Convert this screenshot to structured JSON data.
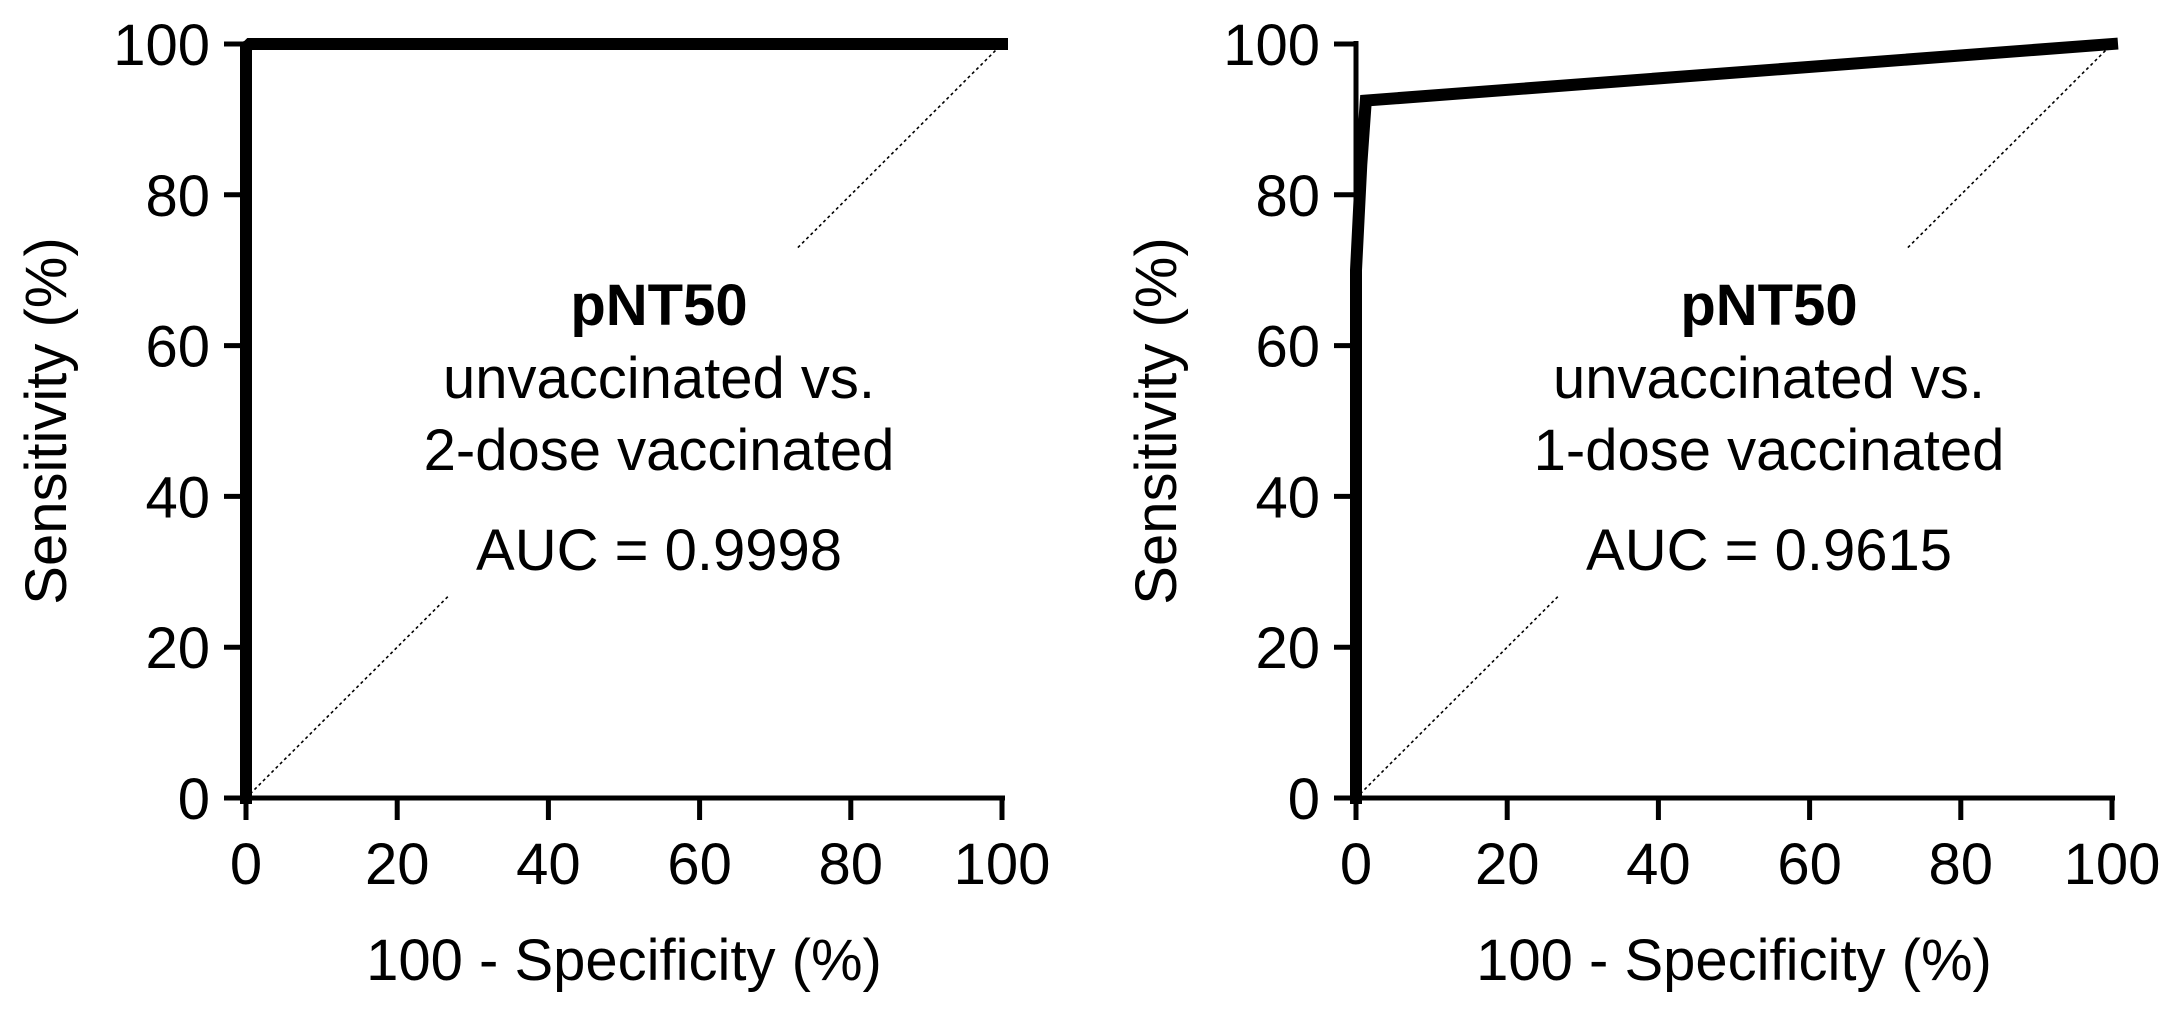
{
  "chart_data": [
    {
      "type": "line",
      "xlabel": "100 - Specificity (%)",
      "ylabel": "Sensitivity (%)",
      "xlim": [
        0,
        100
      ],
      "ylim": [
        0,
        100
      ],
      "xticks": [
        0,
        20,
        40,
        60,
        80,
        100
      ],
      "yticks": [
        0,
        20,
        40,
        60,
        80,
        100
      ],
      "grid": false,
      "annotation": {
        "title": "pNT50",
        "line1": "unvaccinated vs.",
        "line2": "2-dose vaccinated",
        "auc": "AUC = 0.9998"
      },
      "series": [
        {
          "x": [
            0,
            0,
            0.5,
            100
          ],
          "y": [
            0,
            99.5,
            100,
            100
          ]
        }
      ],
      "reference_line": {
        "x": [
          0,
          100
        ],
        "y": [
          0,
          100
        ],
        "style": "dotted"
      }
    },
    {
      "type": "line",
      "xlabel": "100 - Specificity (%)",
      "ylabel": "Sensitivity (%)",
      "xlim": [
        0,
        100
      ],
      "ylim": [
        0,
        100
      ],
      "xticks": [
        0,
        20,
        40,
        60,
        80,
        100
      ],
      "yticks": [
        0,
        20,
        40,
        60,
        80,
        100
      ],
      "grid": false,
      "annotation": {
        "title": "pNT50",
        "line1": "unvaccinated vs.",
        "line2": "1-dose vaccinated",
        "auc": "AUC = 0.9615"
      },
      "series": [
        {
          "x": [
            0,
            0,
            0.7,
            1.3,
            100
          ],
          "y": [
            0,
            70,
            84,
            92.5,
            100
          ]
        }
      ],
      "reference_line": {
        "x": [
          0,
          100
        ],
        "y": [
          0,
          100
        ],
        "style": "dotted"
      }
    }
  ]
}
